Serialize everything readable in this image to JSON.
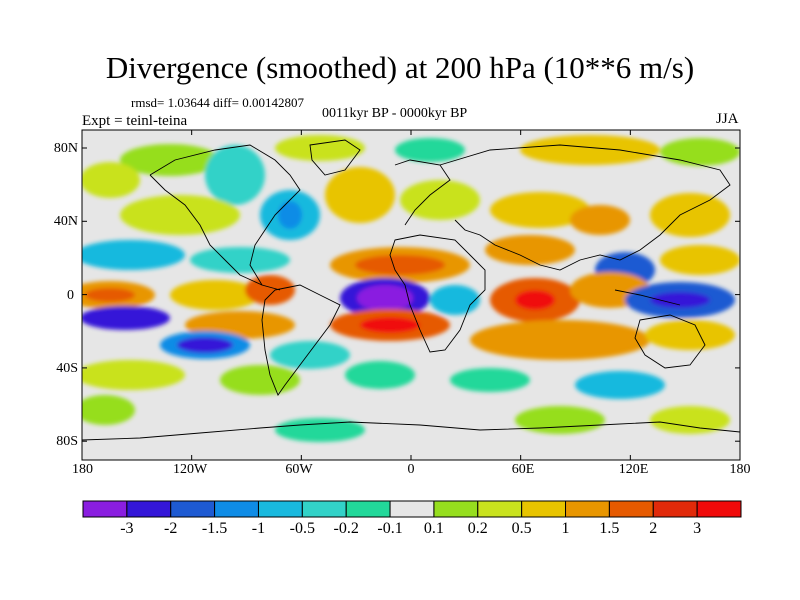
{
  "title": "Divergence (smoothed) at 200 hPa (10**6 m/s)",
  "stats": "rmsd= 1.03644 diff= 0.00142807",
  "period": "0011kyr BP - 0000kyr BP",
  "experiment": "Expt = teinl-teina",
  "season": "JJA",
  "map": {
    "x_ticks": [
      "180",
      "120W",
      "60W",
      "0",
      "60E",
      "120E",
      "180"
    ],
    "y_ticks": [
      "80N",
      "40N",
      "0",
      "40S",
      "80S"
    ]
  },
  "colorbar": {
    "labels": [
      "-3",
      "-2",
      "-1.5",
      "-1",
      "-0.5",
      "-0.2",
      "-0.1",
      "0.1",
      "0.2",
      "0.5",
      "1",
      "1.5",
      "2",
      "3"
    ],
    "colors": [
      "#8a1ee0",
      "#3416d8",
      "#1e5ad2",
      "#0f8ce6",
      "#19b9de",
      "#32d2c8",
      "#22d89a",
      "#e6e6e6",
      "#96de1e",
      "#c9e21e",
      "#e8c400",
      "#e89600",
      "#e65a00",
      "#e12a0a",
      "#f00a0a"
    ]
  }
}
